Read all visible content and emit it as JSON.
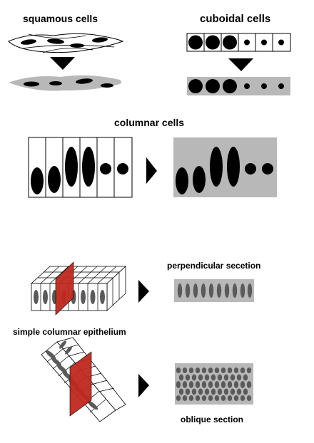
{
  "labels": {
    "squamous": "squamous cells",
    "cuboidal": "cuboidal cells",
    "columnar": "columnar cells",
    "perpendicular": "perpendicular secetion",
    "simple_columnar": "simple columnar epithelium",
    "oblique": "oblique section"
  },
  "colors": {
    "tissue_gray": "#b8b8b8",
    "nucleus": "#000000",
    "section_nucleus": "#5a5a5a",
    "cut_plane": "#c0281e",
    "outline": "#000000"
  },
  "icons": {
    "arrow": "arrowhead-icon"
  }
}
